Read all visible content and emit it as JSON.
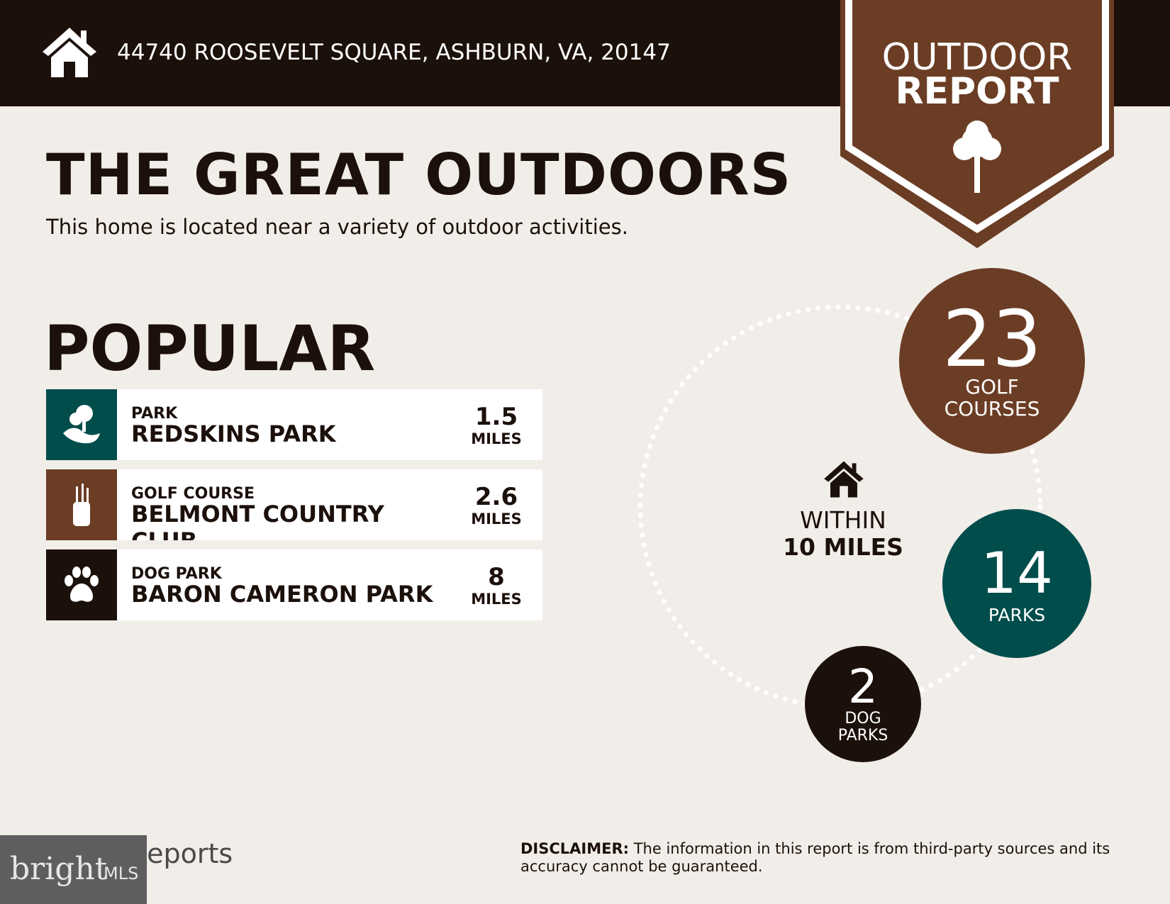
{
  "header": {
    "address": "44740 ROOSEVELT SQUARE, ASHBURN, VA, 20147",
    "icon": "home-icon"
  },
  "badge": {
    "line1": "OUTDOOR",
    "line2": "REPORT",
    "icon": "tree-icon"
  },
  "main": {
    "title": "THE GREAT OUTDOORS",
    "subtitle": "This home is located near a variety of outdoor activities.",
    "section": "POPULAR"
  },
  "popular": [
    {
      "category": "PARK",
      "name": "REDSKINS PARK",
      "distance": "1.5",
      "unit": "MILES",
      "icon": "park-icon",
      "color": "#004d4b"
    },
    {
      "category": "GOLF COURSE",
      "name": "BELMONT COUNTRY CLUB",
      "distance": "2.6",
      "unit": "MILES",
      "icon": "golf-bag-icon",
      "color": "#6b3d24"
    },
    {
      "category": "DOG PARK",
      "name": "BARON CAMERON PARK",
      "distance": "8",
      "unit": "MILES",
      "icon": "paw-icon",
      "color": "#1c100b"
    }
  ],
  "summary": {
    "within1": "WITHIN",
    "within2": "10 MILES",
    "golf": {
      "count": "23",
      "l1": "GOLF",
      "l2": "COURSES",
      "color": "#6b3d24"
    },
    "parks": {
      "count": "14",
      "l1": "PARKS",
      "color": "#004d4b"
    },
    "dogs": {
      "count": "2",
      "l1": "DOG",
      "l2": "PARKS",
      "color": "#1c100b"
    }
  },
  "footer": {
    "disclaimer_label": "DISCLAIMER:",
    "disclaimer": " The information in this report is from third-party sources and its accuracy cannot be guaranteed.",
    "listreports": "ListReports",
    "bright": "bright",
    "mls": "MLS"
  }
}
